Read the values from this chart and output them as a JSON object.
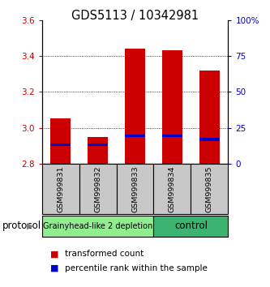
{
  "title": "GDS5113 / 10342981",
  "samples": [
    "GSM999831",
    "GSM999832",
    "GSM999833",
    "GSM999834",
    "GSM999835"
  ],
  "bar_bottom": 2.8,
  "red_tops": [
    3.05,
    2.95,
    3.44,
    3.43,
    3.32
  ],
  "blue_values": [
    2.905,
    2.905,
    2.955,
    2.955,
    2.935
  ],
  "ylim": [
    2.8,
    3.6
  ],
  "yticks_left": [
    2.8,
    3.0,
    3.2,
    3.4,
    3.6
  ],
  "yticks_right": [
    0,
    25,
    50,
    75,
    100
  ],
  "yticks_right_labels": [
    "0",
    "25",
    "50",
    "75",
    "100%"
  ],
  "bar_width": 0.55,
  "groups": [
    {
      "label": "Grainyhead-like 2 depletion",
      "samples": [
        0,
        1,
        2
      ],
      "color": "#90EE90"
    },
    {
      "label": "control",
      "samples": [
        3,
        4
      ],
      "color": "#3CB371"
    }
  ],
  "protocol_label": "protocol",
  "legend_red_label": "transformed count",
  "legend_blue_label": "percentile rank within the sample",
  "sample_box_color": "#C8C8C8",
  "grid_yticks": [
    3.0,
    3.2,
    3.4
  ]
}
